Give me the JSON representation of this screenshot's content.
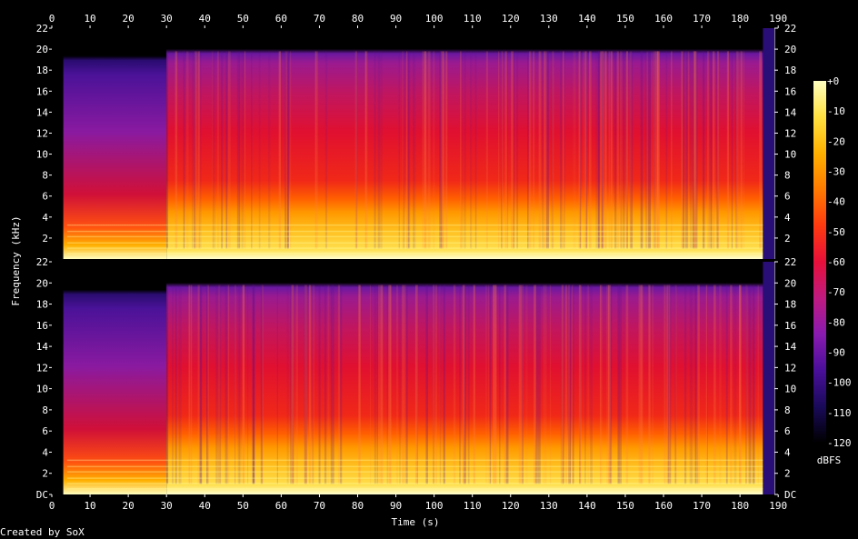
{
  "chart_data": {
    "type": "heatmap",
    "subtype": "spectrogram",
    "channels": 2,
    "xlabel": "Time (s)",
    "ylabel": "Frequency (kHz)",
    "x_ticks": [
      "0",
      "10",
      "20",
      "30",
      "40",
      "50",
      "60",
      "70",
      "80",
      "90",
      "100",
      "110",
      "120",
      "130",
      "140",
      "150",
      "160",
      "170",
      "180",
      "190"
    ],
    "y_ticks_top": [
      "2",
      "4",
      "6",
      "8",
      "10",
      "12",
      "14",
      "16",
      "18",
      "20",
      "22"
    ],
    "y_ticks_bottom": [
      "DC",
      "2",
      "4",
      "6",
      "8",
      "10",
      "12",
      "14",
      "16",
      "18",
      "20",
      "22"
    ],
    "xlim": [
      0,
      189
    ],
    "ylim_khz": [
      0,
      22
    ],
    "colorbar": {
      "label": "dBFS",
      "ticks": [
        "+0",
        "-10",
        "-20",
        "-30",
        "-40",
        "-50",
        "-60",
        "-70",
        "-80",
        "-90",
        "-100",
        "-110",
        "-120"
      ],
      "range": [
        -120,
        0
      ],
      "colors": [
        "#000000",
        "#1a0a5a",
        "#4a0f9a",
        "#8a1ab0",
        "#c01a80",
        "#e8103a",
        "#ff3a10",
        "#ff7a00",
        "#ffb000",
        "#ffe040",
        "#ffffc0"
      ]
    },
    "content_regions": [
      {
        "t_start": 0,
        "t_end": 3,
        "level_db": -120
      },
      {
        "t_start": 3,
        "t_end": 30,
        "cutoff_khz": 19,
        "level_db": -65
      },
      {
        "t_start": 30,
        "t_end": 186,
        "cutoff_khz": 20,
        "level_db": -50
      },
      {
        "t_start": 186,
        "t_end": 189,
        "level_db": -95
      }
    ]
  },
  "footer": {
    "credit": "Created by SoX"
  }
}
